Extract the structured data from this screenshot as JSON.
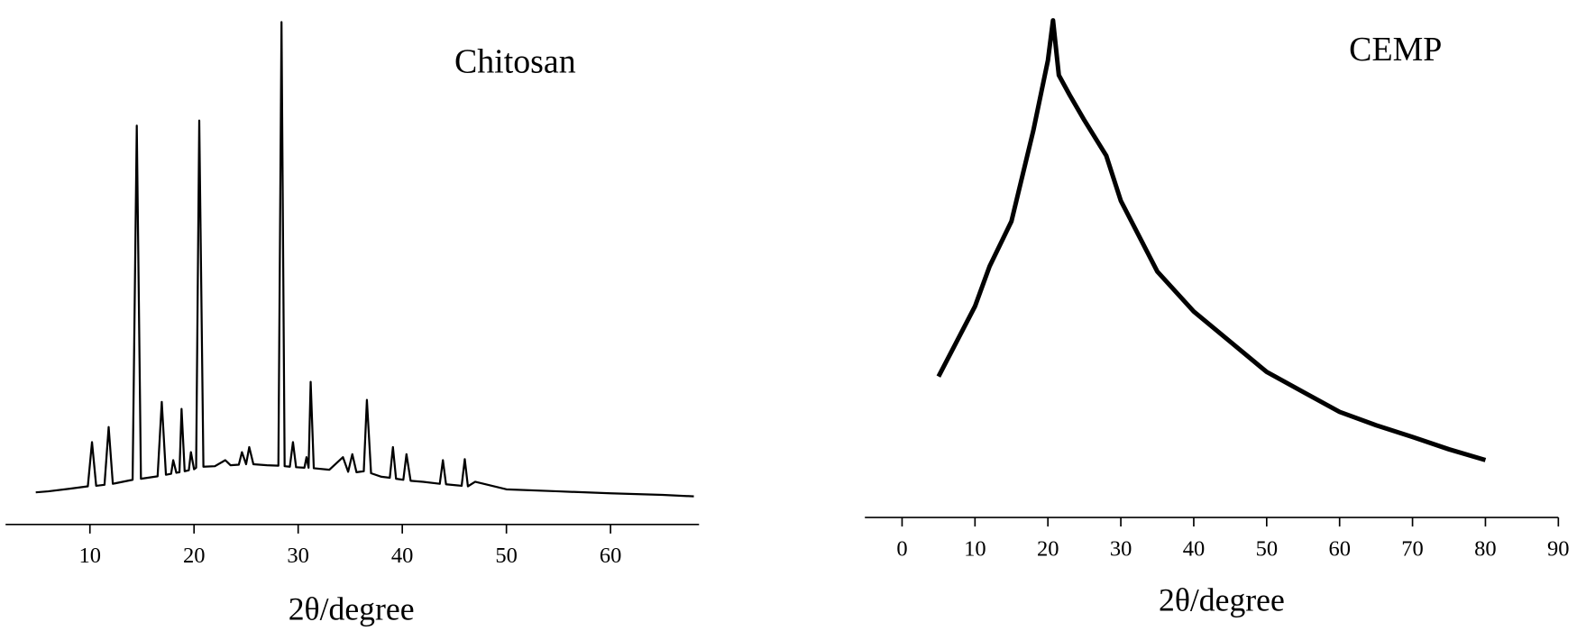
{
  "chart_data": [
    {
      "type": "line",
      "title": "Chitosan",
      "x_label": "2θ/degree",
      "color": "#000000",
      "xlim": [
        1.9,
        68.5
      ],
      "ylim": [
        0,
        100
      ],
      "xticks": [
        10,
        20,
        30,
        40,
        50,
        60
      ],
      "x": [
        4.8,
        6,
        8,
        9.8,
        10.2,
        10.6,
        11.4,
        11.8,
        12.2,
        14.1,
        14.5,
        14.9,
        16.5,
        16.9,
        17.3,
        17.8,
        18.0,
        18.3,
        18.6,
        18.8,
        19.1,
        19.5,
        19.7,
        20.0,
        20.2,
        20.5,
        20.9,
        22,
        23,
        23.5,
        24.3,
        24.6,
        25,
        25.3,
        25.7,
        27,
        28.1,
        28.4,
        28.7,
        29.2,
        29.5,
        29.8,
        30.6,
        30.8,
        31.0,
        31.2,
        31.5,
        33,
        34.3,
        34.8,
        35.2,
        35.6,
        36.3,
        36.6,
        37.0,
        38,
        38.8,
        39.1,
        39.4,
        40.1,
        40.4,
        40.8,
        42,
        43.6,
        43.9,
        44.2,
        45.7,
        46,
        46.3,
        47,
        50,
        55,
        60,
        65,
        68
      ],
      "values": [
        6.4,
        6.6,
        7.1,
        7.6,
        16.4,
        7.7,
        7.9,
        19.4,
        8.1,
        8.9,
        79.4,
        9.1,
        9.6,
        24.4,
        9.9,
        10.1,
        12.8,
        10.3,
        10.4,
        23,
        10.6,
        10.8,
        14.4,
        11.0,
        11.3,
        80.4,
        11.5,
        11.6,
        12.8,
        11.8,
        11.9,
        14.4,
        12,
        15.4,
        12,
        11.8,
        11.7,
        100,
        11.6,
        11.5,
        16.4,
        11.4,
        11.3,
        13.4,
        11.3,
        28.4,
        11.2,
        10.9,
        13.4,
        10.5,
        14,
        10.4,
        10.6,
        24.8,
        10.2,
        9.5,
        9.3,
        15.4,
        9.1,
        8.9,
        14,
        8.7,
        8.5,
        8.1,
        12.8,
        8.0,
        7.7,
        13,
        7.6,
        8.5,
        7,
        6.6,
        6.2,
        5.9,
        5.6
      ]
    },
    {
      "type": "line",
      "title": "CEMP",
      "x_label": "2θ/degree",
      "color": "#000000",
      "xlim": [
        -5.1,
        90
      ],
      "ylim": [
        0,
        100
      ],
      "xticks": [
        0,
        10,
        20,
        30,
        40,
        50,
        60,
        70,
        80,
        90
      ],
      "x": [
        5,
        10,
        12,
        15,
        18,
        20,
        20.7,
        21.5,
        23,
        25,
        28,
        30,
        35,
        40,
        45,
        50,
        55,
        60,
        65,
        70,
        75,
        80
      ],
      "values": [
        27.5,
        41.2,
        49,
        57.8,
        75.5,
        89.2,
        97,
        86.3,
        82.4,
        77.5,
        70.6,
        61.8,
        48,
        40.2,
        34.3,
        28.4,
        24.5,
        20.6,
        18,
        15.7,
        13.3,
        11.2
      ]
    }
  ]
}
